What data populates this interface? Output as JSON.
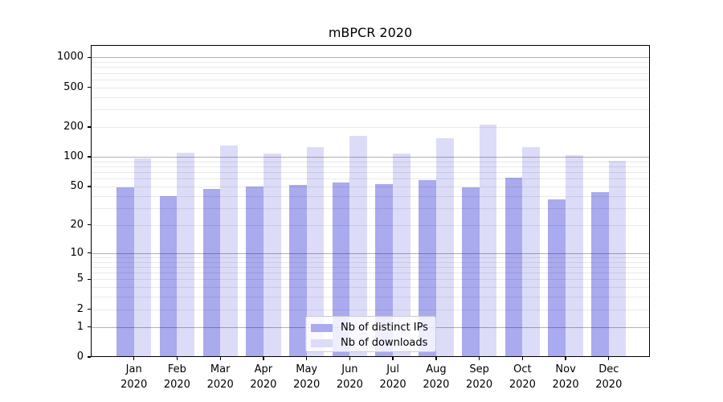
{
  "chart_data": {
    "type": "bar",
    "title": "mBPCR 2020",
    "categories": [
      "Jan 2020",
      "Feb 2020",
      "Mar 2020",
      "Apr 2020",
      "May 2020",
      "Jun 2020",
      "Jul 2020",
      "Aug 2020",
      "Sep 2020",
      "Oct 2020",
      "Nov 2020",
      "Dec 2020"
    ],
    "series": [
      {
        "name": "Nb of distinct IPs",
        "color": "#aaaaee",
        "values": [
          49,
          40,
          47,
          50,
          52,
          55,
          53,
          58,
          49,
          61,
          37,
          44
        ]
      },
      {
        "name": "Nb of downloads",
        "color": "#dcdcf8",
        "values": [
          97,
          110,
          130,
          108,
          125,
          163,
          107,
          155,
          210,
          125,
          105,
          91
        ]
      }
    ],
    "xlabel": "",
    "ylabel": "",
    "yscale": "log10(1+value)",
    "ylim": [
      0,
      1330
    ],
    "y_ticks": [
      0,
      1,
      2,
      5,
      10,
      20,
      50,
      100,
      200,
      500,
      1000
    ],
    "y_major_gridlines": [
      1,
      10,
      100,
      1000
    ],
    "y_minor_gridlines": [
      2,
      3,
      4,
      5,
      6,
      7,
      8,
      9,
      20,
      30,
      40,
      50,
      60,
      70,
      80,
      90,
      200,
      300,
      400,
      500,
      600,
      700,
      800,
      900
    ],
    "grid": true,
    "grid_on_top_of_bars": true,
    "legend_position": "lower center"
  }
}
